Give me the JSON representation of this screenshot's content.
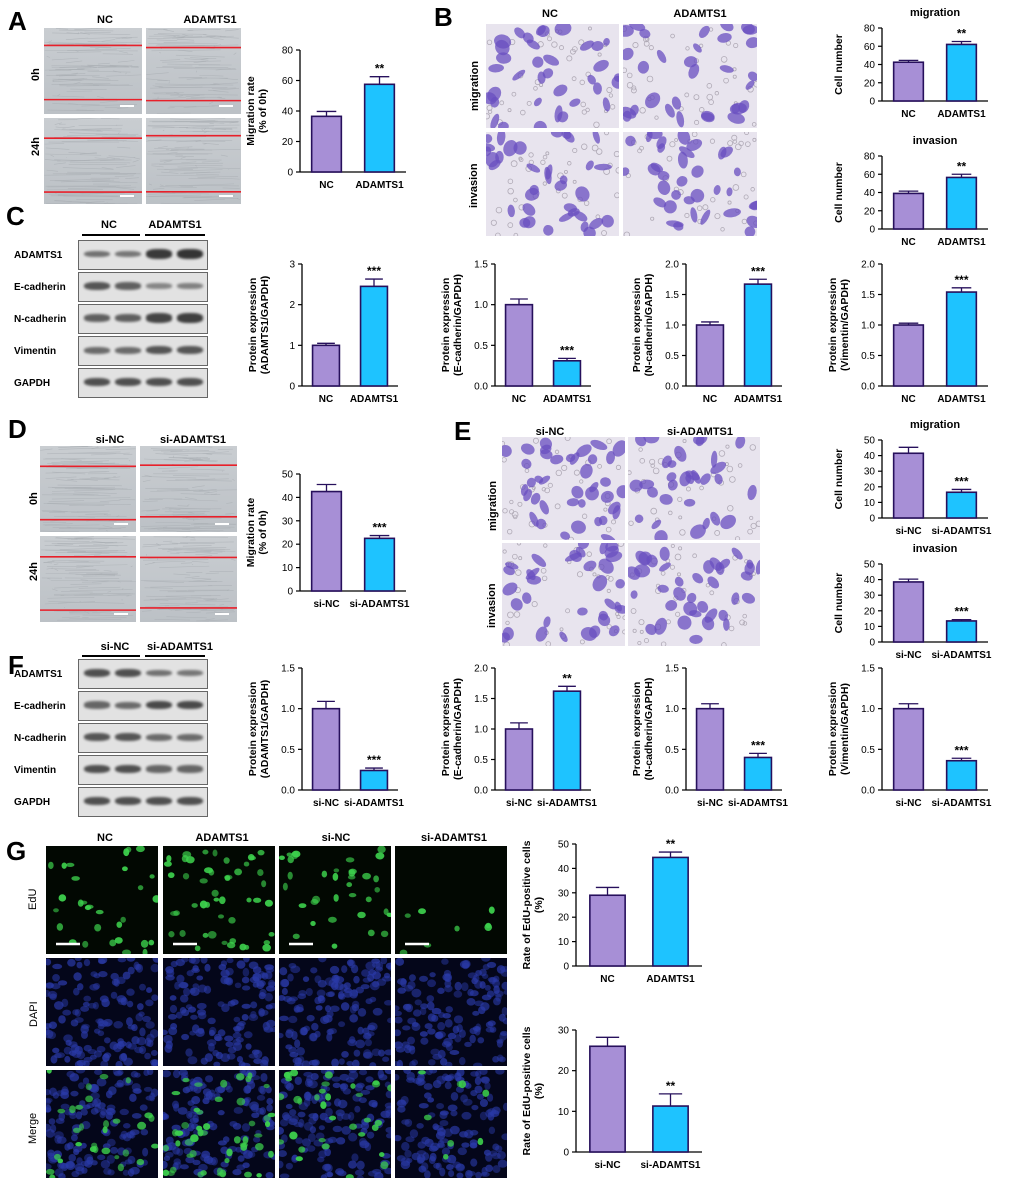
{
  "colors": {
    "purple": "#a78fd6",
    "cyan": "#1ec3ff",
    "edge": "#27105c",
    "edu_green": "#3dd24d",
    "dapi_blue": "#2a3aa8"
  },
  "panels": {
    "A": {
      "label": "A",
      "groups": [
        "NC",
        "ADAMTS1"
      ],
      "rows": [
        "0h",
        "24h"
      ]
    },
    "B": {
      "label": "B",
      "groups": [
        "NC",
        "ADAMTS1"
      ],
      "rows": [
        "migration",
        "invasion"
      ]
    },
    "C": {
      "label": "C",
      "groups": [
        "NC",
        "ADAMTS1"
      ],
      "proteins": [
        "ADAMTS1",
        "E-cadherin",
        "N-cadherin",
        "Vimentin",
        "GAPDH"
      ]
    },
    "D": {
      "label": "D",
      "groups": [
        "si-NC",
        "si-ADAMTS1"
      ],
      "rows": [
        "0h",
        "24h"
      ]
    },
    "E": {
      "label": "E",
      "groups": [
        "si-NC",
        "si-ADAMTS1"
      ],
      "rows": [
        "migration",
        "invasion"
      ]
    },
    "F": {
      "label": "F",
      "groups": [
        "si-NC",
        "si-ADAMTS1"
      ],
      "proteins": [
        "ADAMTS1",
        "E-cadherin",
        "N-cadherin",
        "Vimentin",
        "GAPDH"
      ]
    },
    "G": {
      "label": "G",
      "groups": [
        "NC",
        "ADAMTS1",
        "si-NC",
        "si-ADAMTS1"
      ],
      "rows": [
        "EdU",
        "DAPI",
        "Merge"
      ]
    }
  },
  "chart_data": [
    {
      "id": "A_mig",
      "type": "bar",
      "categories": [
        "NC",
        "ADAMTS1"
      ],
      "values": [
        36.5,
        57.5
      ],
      "errors": [
        3.2,
        5.0
      ],
      "ylabel": [
        "Migration rate",
        "(% of 0h)"
      ],
      "ylim": [
        0,
        80
      ],
      "ticks": [
        0,
        20,
        40,
        60,
        80
      ],
      "sig": "**"
    },
    {
      "id": "B_mig",
      "type": "bar",
      "title": "migration",
      "categories": [
        "NC",
        "ADAMTS1"
      ],
      "values": [
        42.5,
        62.0
      ],
      "errors": [
        2.0,
        3.2
      ],
      "ylabel": [
        "Cell number"
      ],
      "ylim": [
        0,
        80
      ],
      "ticks": [
        0,
        20,
        40,
        60,
        80
      ],
      "sig": "**"
    },
    {
      "id": "B_inv",
      "type": "bar",
      "title": "invasion",
      "categories": [
        "NC",
        "ADAMTS1"
      ],
      "values": [
        39.0,
        56.5
      ],
      "errors": [
        2.5,
        3.5
      ],
      "ylabel": [
        "Cell number"
      ],
      "ylim": [
        0,
        80
      ],
      "ticks": [
        0,
        20,
        40,
        60,
        80
      ],
      "sig": "**"
    },
    {
      "id": "C_adamts1",
      "type": "bar",
      "categories": [
        "NC",
        "ADAMTS1"
      ],
      "values": [
        1.0,
        2.45
      ],
      "errors": [
        0.05,
        0.18
      ],
      "ylabel": [
        "Protein expression",
        "(ADAMTS1/GAPDH)"
      ],
      "ylim": [
        0,
        3
      ],
      "ticks": [
        0,
        1,
        2,
        3
      ],
      "sig": "***"
    },
    {
      "id": "C_ecad",
      "type": "bar",
      "categories": [
        "NC",
        "ADAMTS1"
      ],
      "values": [
        1.0,
        0.31
      ],
      "errors": [
        0.07,
        0.03
      ],
      "ylabel": [
        "Protein expression",
        "(E-cadherin/GAPDH)"
      ],
      "ylim": [
        0,
        1.5
      ],
      "ticks": [
        0.0,
        0.5,
        1.0,
        1.5
      ],
      "sig": "***"
    },
    {
      "id": "C_ncad",
      "type": "bar",
      "categories": [
        "NC",
        "ADAMTS1"
      ],
      "values": [
        1.0,
        1.67
      ],
      "errors": [
        0.05,
        0.08
      ],
      "ylabel": [
        "Protein expression",
        "(N-cadherin/GAPDH)"
      ],
      "ylim": [
        0,
        2
      ],
      "ticks": [
        0.0,
        0.5,
        1.0,
        1.5,
        2.0
      ],
      "sig": "***"
    },
    {
      "id": "C_vim",
      "type": "bar",
      "categories": [
        "NC",
        "ADAMTS1"
      ],
      "values": [
        1.0,
        1.54
      ],
      "errors": [
        0.03,
        0.07
      ],
      "ylabel": [
        "Protein expression",
        "(Vimentin/GAPDH)"
      ],
      "ylim": [
        0,
        2
      ],
      "ticks": [
        0.0,
        0.5,
        1.0,
        1.5,
        2.0
      ],
      "sig": "***"
    },
    {
      "id": "D_mig",
      "type": "bar",
      "categories": [
        "si-NC",
        "si-ADAMTS1"
      ],
      "values": [
        42.5,
        22.5
      ],
      "errors": [
        3.0,
        1.2
      ],
      "ylabel": [
        "Migration rate",
        "(% of 0h)"
      ],
      "ylim": [
        0,
        50
      ],
      "ticks": [
        0,
        10,
        20,
        30,
        40,
        50
      ],
      "sig": "***"
    },
    {
      "id": "E_mig",
      "type": "bar",
      "title": "migration",
      "categories": [
        "si-NC",
        "si-ADAMTS1"
      ],
      "values": [
        41.5,
        16.5
      ],
      "errors": [
        3.8,
        1.8
      ],
      "ylabel": [
        "Cell number"
      ],
      "ylim": [
        0,
        50
      ],
      "ticks": [
        0,
        10,
        20,
        30,
        40,
        50
      ],
      "sig": "***"
    },
    {
      "id": "E_inv",
      "type": "bar",
      "title": "invasion",
      "categories": [
        "si-NC",
        "si-ADAMTS1"
      ],
      "values": [
        38.5,
        13.5
      ],
      "errors": [
        1.8,
        0.8
      ],
      "ylabel": [
        "Cell number"
      ],
      "ylim": [
        0,
        50
      ],
      "ticks": [
        0,
        10,
        20,
        30,
        40,
        50
      ],
      "sig": "***"
    },
    {
      "id": "F_adamts1",
      "type": "bar",
      "categories": [
        "si-NC",
        "si-ADAMTS1"
      ],
      "values": [
        1.0,
        0.24
      ],
      "errors": [
        0.09,
        0.03
      ],
      "ylabel": [
        "Protein expression",
        "(ADAMTS1/GAPDH)"
      ],
      "ylim": [
        0,
        1.5
      ],
      "ticks": [
        0.0,
        0.5,
        1.0,
        1.5
      ],
      "sig": "***"
    },
    {
      "id": "F_ecad",
      "type": "bar",
      "categories": [
        "si-NC",
        "si-ADAMTS1"
      ],
      "values": [
        1.0,
        1.62
      ],
      "errors": [
        0.1,
        0.08
      ],
      "ylabel": [
        "Protein expression",
        "(E-cadherin/GAPDH)"
      ],
      "ylim": [
        0,
        2
      ],
      "ticks": [
        0.0,
        0.5,
        1.0,
        1.5,
        2.0
      ],
      "sig": "**"
    },
    {
      "id": "F_ncad",
      "type": "bar",
      "categories": [
        "si-NC",
        "si-ADAMTS1"
      ],
      "values": [
        1.0,
        0.4
      ],
      "errors": [
        0.06,
        0.05
      ],
      "ylabel": [
        "Protein expression",
        "(N-cadherin/GAPDH)"
      ],
      "ylim": [
        0,
        1.5
      ],
      "ticks": [
        0.0,
        0.5,
        1.0,
        1.5
      ],
      "sig": "***"
    },
    {
      "id": "F_vim",
      "type": "bar",
      "categories": [
        "si-NC",
        "si-ADAMTS1"
      ],
      "values": [
        1.0,
        0.36
      ],
      "errors": [
        0.06,
        0.03
      ],
      "ylabel": [
        "Protein expression",
        "(Vimentin/GAPDH)"
      ],
      "ylim": [
        0,
        1.5
      ],
      "ticks": [
        0.0,
        0.5,
        1.0,
        1.5
      ],
      "sig": "***"
    },
    {
      "id": "G_oe",
      "type": "bar",
      "categories": [
        "NC",
        "ADAMTS1"
      ],
      "values": [
        29.0,
        44.5
      ],
      "errors": [
        3.2,
        2.2
      ],
      "ylabel": [
        "Rate of EdU-positive cells",
        "(%)"
      ],
      "ylim": [
        0,
        50
      ],
      "ticks": [
        0,
        10,
        20,
        30,
        40,
        50
      ],
      "sig": "**"
    },
    {
      "id": "G_kd",
      "type": "bar",
      "categories": [
        "si-NC",
        "si-ADAMTS1"
      ],
      "values": [
        26.0,
        11.3
      ],
      "errors": [
        2.2,
        3.0
      ],
      "ylabel": [
        "Rate of EdU-positive cells",
        "(%)"
      ],
      "ylim": [
        0,
        30
      ],
      "ticks": [
        0,
        10,
        20,
        30
      ],
      "sig": "**"
    }
  ]
}
